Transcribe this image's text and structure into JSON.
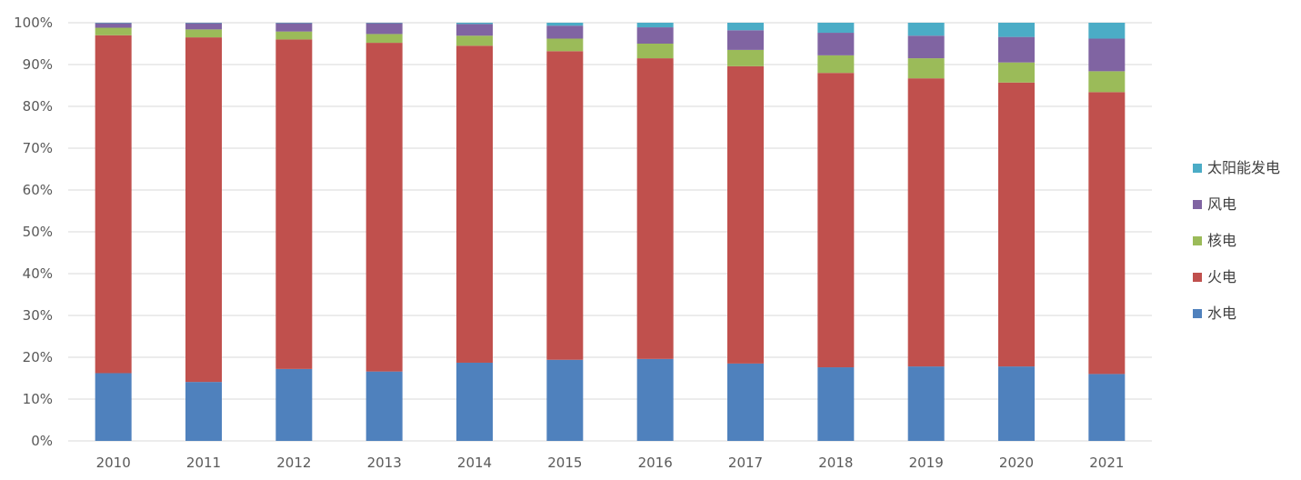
{
  "chart_data": {
    "type": "bar",
    "stacked": true,
    "percent_stacked": true,
    "categories": [
      "2010",
      "2011",
      "2012",
      "2013",
      "2014",
      "2015",
      "2016",
      "2017",
      "2018",
      "2019",
      "2020",
      "2021"
    ],
    "series": [
      {
        "name": "水电",
        "color": "#4f81bd",
        "values": [
          16.2,
          14.1,
          17.2,
          16.6,
          18.7,
          19.4,
          19.6,
          18.5,
          17.6,
          17.8,
          17.8,
          16.0
        ]
      },
      {
        "name": "火电",
        "color": "#c0504d",
        "values": [
          80.8,
          82.4,
          78.8,
          78.6,
          75.8,
          73.8,
          71.9,
          71.1,
          70.4,
          68.9,
          67.9,
          67.4
        ]
      },
      {
        "name": "核电",
        "color": "#9bbb59",
        "values": [
          1.8,
          1.9,
          1.9,
          2.1,
          2.4,
          3.0,
          3.5,
          3.9,
          4.2,
          4.8,
          4.8,
          5.0
        ]
      },
      {
        "name": "风电",
        "color": "#8064a2",
        "values": [
          1.1,
          1.5,
          2.0,
          2.6,
          2.8,
          3.1,
          3.9,
          4.7,
          5.4,
          5.4,
          6.1,
          7.8
        ]
      },
      {
        "name": "太阳能发电",
        "color": "#4bacc6",
        "values": [
          0.1,
          0.1,
          0.1,
          0.1,
          0.3,
          0.7,
          1.1,
          1.8,
          2.4,
          3.1,
          3.4,
          3.8
        ]
      }
    ],
    "y_ticks": [
      "0%",
      "10%",
      "20%",
      "30%",
      "40%",
      "50%",
      "60%",
      "70%",
      "80%",
      "90%",
      "100%"
    ],
    "ylim": [
      0,
      100
    ],
    "grid": true,
    "legend_position": "right",
    "legend_order": [
      "太阳能发电",
      "风电",
      "核电",
      "火电",
      "水电"
    ],
    "title": "",
    "xlabel": "",
    "ylabel": ""
  }
}
